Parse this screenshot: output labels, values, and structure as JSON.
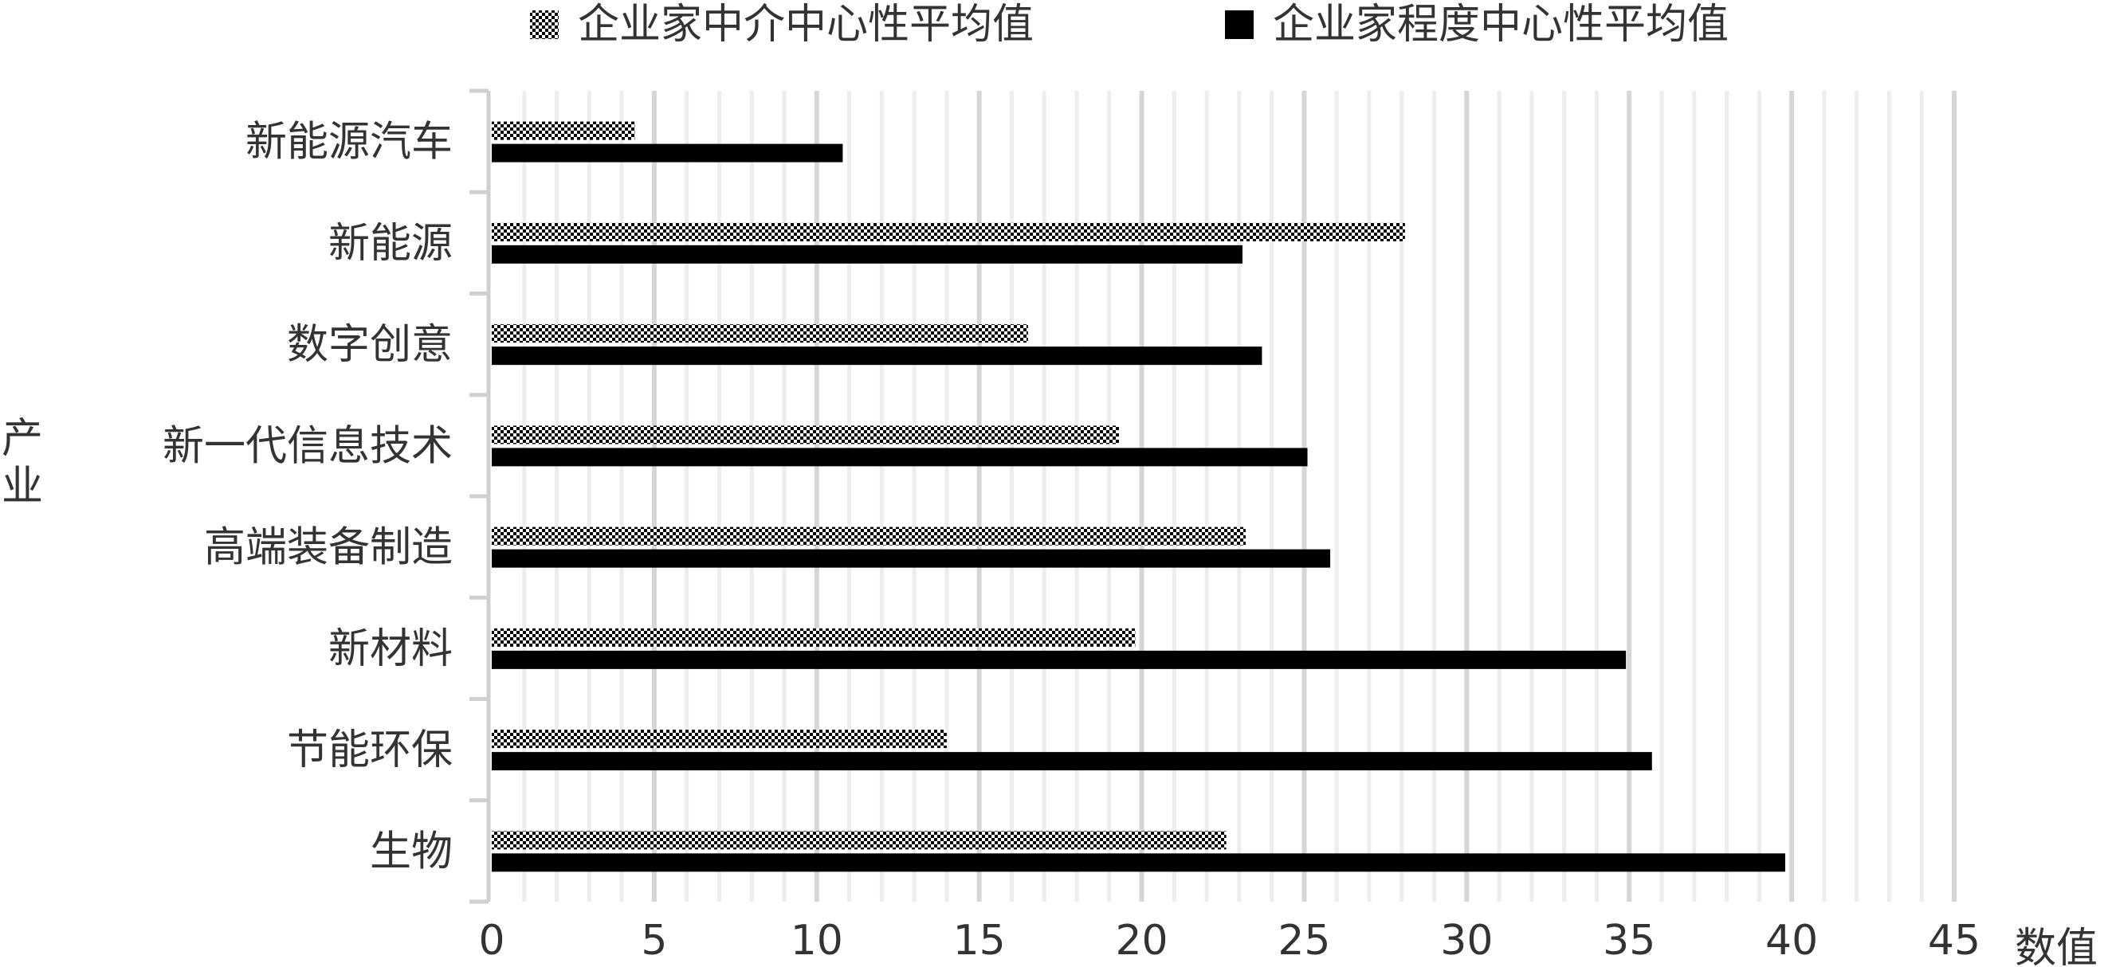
{
  "chart_data": {
    "type": "bar",
    "orientation": "horizontal",
    "categories": [
      "新能源汽车",
      "新能源",
      "数字创意",
      "新一代信息技术",
      "高端装备制造",
      "新材料",
      "节能环保",
      "生物"
    ],
    "series": [
      {
        "name": "企业家中介中心性平均值",
        "pattern": "checkered",
        "values": [
          4.4,
          28.1,
          16.5,
          19.3,
          23.2,
          19.8,
          14.0,
          22.6
        ]
      },
      {
        "name": "企业家程度中心性平均值",
        "color": "#000000",
        "values": [
          10.8,
          23.1,
          23.7,
          25.1,
          25.8,
          34.9,
          35.7,
          39.8
        ]
      }
    ],
    "xlabel": "数值",
    "ylabel": "产业",
    "xlim": [
      0,
      45
    ],
    "xticks": [
      0,
      5,
      10,
      15,
      20,
      25,
      30,
      35,
      40,
      45
    ],
    "grid": "vertical",
    "legend_position": "top"
  }
}
